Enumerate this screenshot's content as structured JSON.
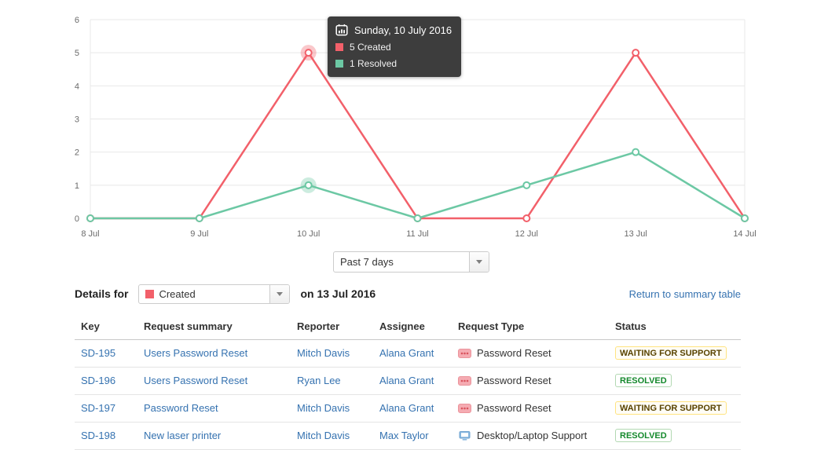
{
  "chart_data": {
    "type": "line",
    "categories": [
      "8 Jul",
      "9 Jul",
      "10 Jul",
      "11 Jul",
      "12 Jul",
      "13 Jul",
      "14 Jul"
    ],
    "series": [
      {
        "name": "Created",
        "color": "#f2606a",
        "values": [
          0,
          0,
          5,
          0,
          0,
          5,
          0
        ]
      },
      {
        "name": "Resolved",
        "color": "#6cc8a4",
        "values": [
          0,
          0,
          1,
          0,
          1,
          2,
          0
        ]
      }
    ],
    "title": "",
    "xlabel": "",
    "ylabel": "",
    "ylim": [
      0,
      6
    ],
    "y_ticks": [
      0,
      1,
      2,
      3,
      4,
      5,
      6
    ],
    "grid": true,
    "legend_position": "none",
    "highlight_index": 2
  },
  "tooltip": {
    "title": "Sunday, 10 July 2016",
    "entries": [
      {
        "label": "5 Created",
        "color": "#f2606a"
      },
      {
        "label": "1 Resolved",
        "color": "#6cc8a4"
      }
    ]
  },
  "controls": {
    "range_select_value": "Past 7 days",
    "details_prefix": "Details for",
    "series_select_value": "Created",
    "series_select_color": "#f2606a",
    "date_text": "on 13 Jul 2016",
    "return_link": "Return to summary table"
  },
  "table": {
    "columns": [
      "Key",
      "Request summary",
      "Reporter",
      "Assignee",
      "Request Type",
      "Status"
    ],
    "rows": [
      {
        "key": "SD-195",
        "summary": "Users Password Reset",
        "reporter": "Mitch Davis",
        "assignee": "Alana Grant",
        "request_type": "Password Reset",
        "request_type_icon": "password-reset-icon",
        "status": "WAITING FOR SUPPORT",
        "status_style": "yellow"
      },
      {
        "key": "SD-196",
        "summary": "Users Password Reset",
        "reporter": "Ryan Lee",
        "assignee": "Alana Grant",
        "request_type": "Password Reset",
        "request_type_icon": "password-reset-icon",
        "status": "RESOLVED",
        "status_style": "green"
      },
      {
        "key": "SD-197",
        "summary": "Password Reset",
        "reporter": "Mitch Davis",
        "assignee": "Alana Grant",
        "request_type": "Password Reset",
        "request_type_icon": "password-reset-icon",
        "status": "WAITING FOR SUPPORT",
        "status_style": "yellow"
      },
      {
        "key": "SD-198",
        "summary": "New laser printer",
        "reporter": "Mitch Davis",
        "assignee": "Max Taylor",
        "request_type": "Desktop/Laptop Support",
        "request_type_icon": "hardware-icon",
        "status": "RESOLVED",
        "status_style": "green"
      }
    ],
    "status_styles": {
      "yellow": {
        "color": "#594300",
        "border": "#ffe380",
        "bg": "#fffdf6"
      },
      "green": {
        "color": "#14892c",
        "border": "#b2d8b2",
        "bg": "#ffffff"
      }
    }
  }
}
